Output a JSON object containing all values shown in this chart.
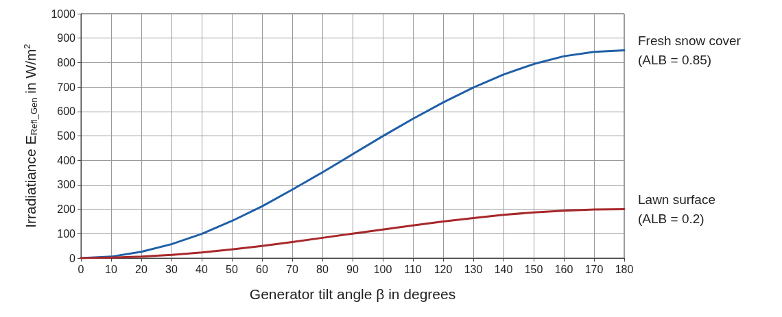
{
  "chart_data": {
    "type": "line",
    "xlabel": "Generator tilt angle β in degrees",
    "ylabel": "Irradiatiance E$_{Refl_Gen}$ in W/m$^{2}$",
    "x": [
      0,
      10,
      20,
      30,
      40,
      50,
      60,
      70,
      80,
      90,
      100,
      110,
      120,
      130,
      140,
      150,
      160,
      170,
      180
    ],
    "series": [
      {
        "name": "Fresh snow cover (ALB = 0.85)",
        "color": "#1f5fa8",
        "values": [
          0,
          6,
          26,
          57,
          99,
          152,
          212,
          280,
          351,
          425,
          499,
          570,
          637,
          698,
          751,
          794,
          826,
          844,
          850
        ]
      },
      {
        "name": "Lawn surface (ALB = 0.2)",
        "color": "#a8282a",
        "values": [
          0,
          2,
          6,
          13,
          23,
          36,
          50,
          66,
          83,
          100,
          117,
          134,
          150,
          164,
          177,
          187,
          194,
          199,
          200
        ]
      }
    ],
    "xlim": [
      0,
      180
    ],
    "xticks": [
      0,
      10,
      20,
      30,
      40,
      50,
      60,
      70,
      80,
      90,
      100,
      110,
      120,
      130,
      140,
      150,
      160,
      170,
      180
    ],
    "ylim": [
      0,
      1000
    ],
    "yticks": [
      0,
      100,
      200,
      300,
      400,
      500,
      600,
      700,
      800,
      900,
      1000
    ],
    "grid": true,
    "marker": "none",
    "line_style": "solid"
  }
}
